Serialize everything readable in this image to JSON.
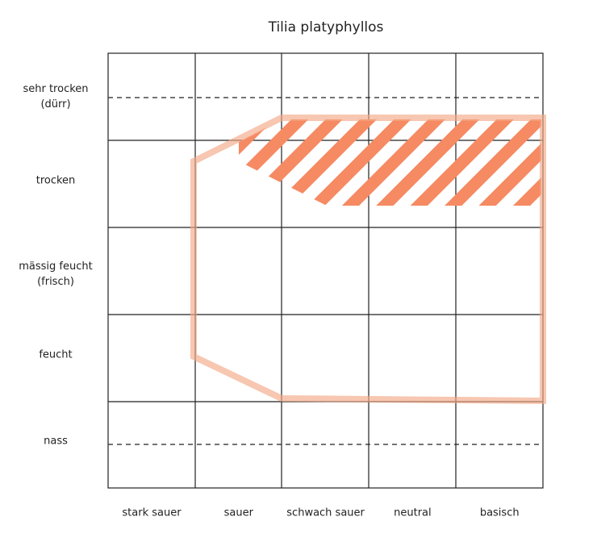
{
  "title": "Tilia platyphyllos",
  "rows": [
    {
      "label": [
        "sehr trocken",
        "(dürr)"
      ]
    },
    {
      "label": [
        "trocken"
      ]
    },
    {
      "label": [
        "mässig feucht",
        "(frisch)"
      ]
    },
    {
      "label": [
        "feucht"
      ]
    },
    {
      "label": [
        "nass"
      ]
    }
  ],
  "columns": [
    "stark sauer",
    "sauer",
    "schwach sauer",
    "neutral",
    "basisch"
  ]
}
